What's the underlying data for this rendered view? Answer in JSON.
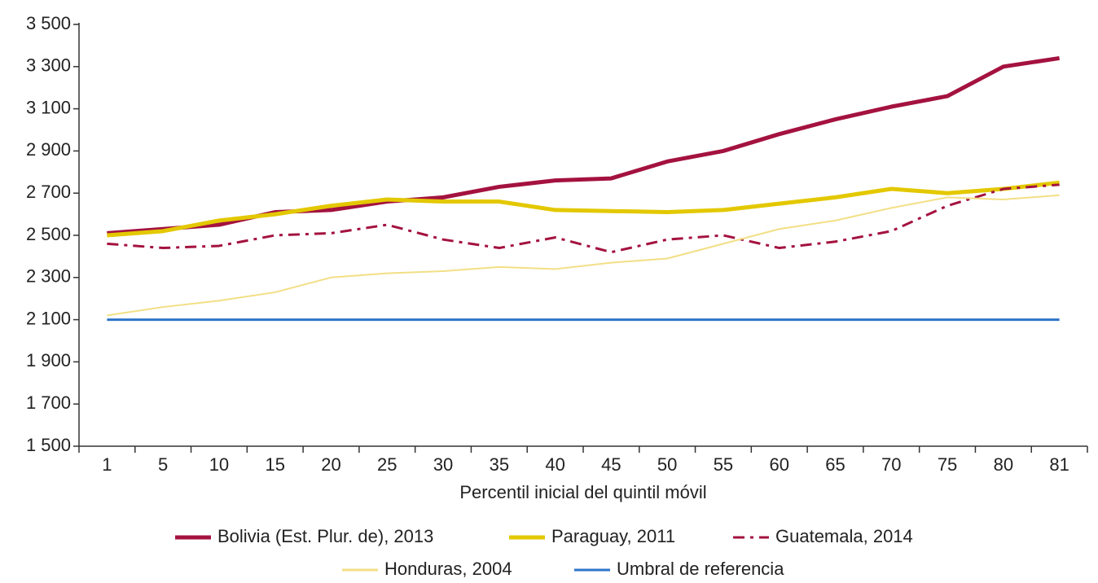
{
  "chart_data": {
    "type": "line",
    "x_label": "Percentil inicial del quintil móvil",
    "categories": [
      "1",
      "5",
      "10",
      "15",
      "20",
      "25",
      "30",
      "35",
      "40",
      "45",
      "50",
      "55",
      "60",
      "65",
      "70",
      "75",
      "80",
      "81"
    ],
    "ylim": [
      1500,
      3500
    ],
    "yticks": [
      {
        "value": 1500,
        "label": "1 500"
      },
      {
        "value": 1700,
        "label": "1 700"
      },
      {
        "value": 1900,
        "label": "1 900"
      },
      {
        "value": 2100,
        "label": "2 100"
      },
      {
        "value": 2300,
        "label": "2 300"
      },
      {
        "value": 2500,
        "label": "2 500"
      },
      {
        "value": 2700,
        "label": "2 700"
      },
      {
        "value": 2900,
        "label": "2 900"
      },
      {
        "value": 3100,
        "label": "3 100"
      },
      {
        "value": 3300,
        "label": "3 300"
      },
      {
        "value": 3500,
        "label": "3 500"
      }
    ],
    "grid": false,
    "legend": "bottom",
    "series": [
      {
        "name": "Bolivia (Est. Plur. de), 2013",
        "color": "#a4123f",
        "line_width": 5,
        "line_style": "solid",
        "values": [
          2510,
          2530,
          2550,
          2610,
          2620,
          2660,
          2680,
          2730,
          2760,
          2770,
          2850,
          2900,
          2980,
          3050,
          3110,
          3160,
          3300,
          3340
        ]
      },
      {
        "name": "Paraguay, 2011",
        "color": "#e3c800",
        "line_width": 5,
        "line_style": "solid",
        "values": [
          2500,
          2520,
          2570,
          2600,
          2640,
          2670,
          2660,
          2660,
          2620,
          2615,
          2610,
          2620,
          2650,
          2680,
          2720,
          2700,
          2720,
          2750
        ]
      },
      {
        "name": "Guatemala, 2014",
        "color": "#a4123f",
        "line_width": 3,
        "line_style": "dashdot",
        "values": [
          2460,
          2440,
          2450,
          2500,
          2510,
          2550,
          2480,
          2440,
          2490,
          2420,
          2480,
          2500,
          2440,
          2470,
          2520,
          2640,
          2720,
          2740
        ]
      },
      {
        "name": "Honduras, 2004",
        "color": "#f2df85",
        "line_width": 2,
        "line_style": "solid",
        "values": [
          2120,
          2160,
          2190,
          2230,
          2300,
          2320,
          2330,
          2350,
          2340,
          2370,
          2390,
          2460,
          2530,
          2570,
          2630,
          2680,
          2670,
          2690
        ]
      },
      {
        "name": "Umbral de referencia",
        "color": "#2e74c8",
        "line_width": 3,
        "line_style": "solid",
        "values": [
          2100,
          2100,
          2100,
          2100,
          2100,
          2100,
          2100,
          2100,
          2100,
          2100,
          2100,
          2100,
          2100,
          2100,
          2100,
          2100,
          2100,
          2100
        ]
      }
    ]
  }
}
